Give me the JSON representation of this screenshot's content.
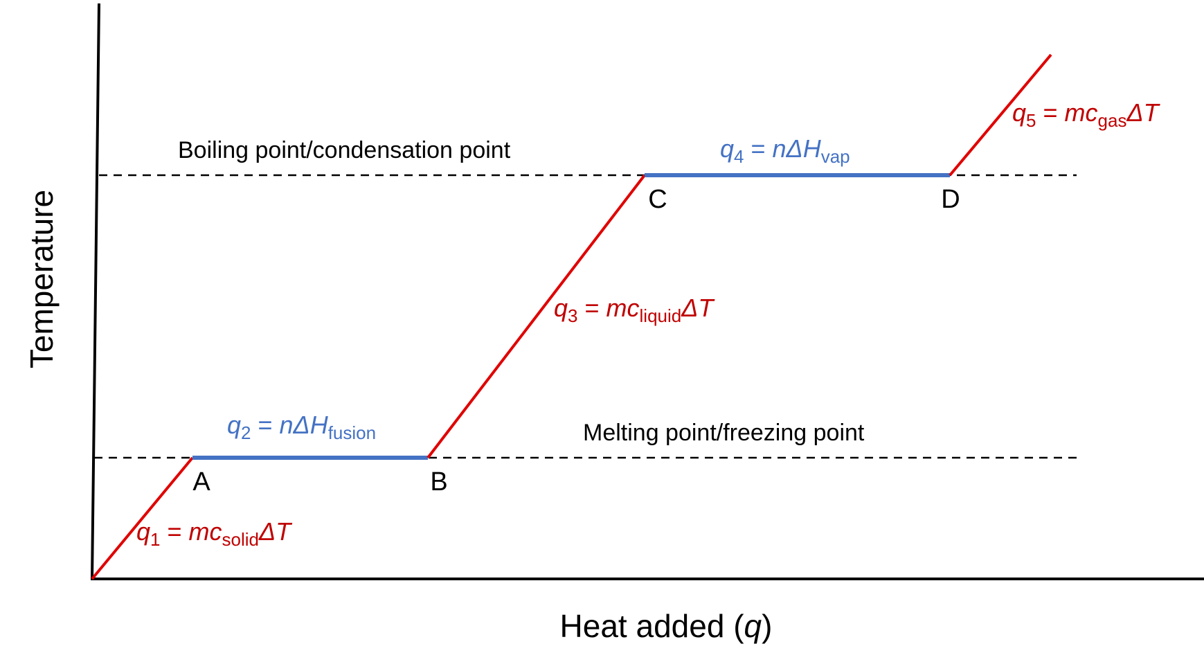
{
  "axes": {
    "ylabel": "Temperature",
    "xlabel_text": "Heat added (",
    "xlabel_var": "q",
    "xlabel_close": ")"
  },
  "reference_lines": {
    "boiling": "Boiling point/condensation point",
    "melting": "Melting point/freezing point"
  },
  "points": {
    "a": "A",
    "b": "B",
    "c": "C",
    "d": "D"
  },
  "equations": {
    "q1": {
      "lhs": "q",
      "lhs_sub": "1",
      "eq": " = ",
      "rhs": "mc",
      "rhs_sub": "solid",
      "tail": "ΔT"
    },
    "q2": {
      "lhs": "q",
      "lhs_sub": "2",
      "eq": " = ",
      "rhs": "nΔH",
      "rhs_sub": "fusion"
    },
    "q3": {
      "lhs": "q",
      "lhs_sub": "3",
      "eq": " = ",
      "rhs": "mc",
      "rhs_sub": "liquid",
      "tail": "ΔT"
    },
    "q4": {
      "lhs": "q",
      "lhs_sub": "4",
      "eq": " = ",
      "rhs": "nΔH",
      "rhs_sub": "vap"
    },
    "q5": {
      "lhs": "q",
      "lhs_sub": "5",
      "eq": " = ",
      "rhs": "mc",
      "rhs_sub": "gas",
      "tail": "ΔT"
    }
  },
  "colors": {
    "sloped_segments": "#e00000",
    "plateau_segments": "#4472c4",
    "sloped_labels": "#c00000",
    "plateau_labels": "#4472c4",
    "axes": "#000000",
    "dashed_lines": "#000000"
  }
}
